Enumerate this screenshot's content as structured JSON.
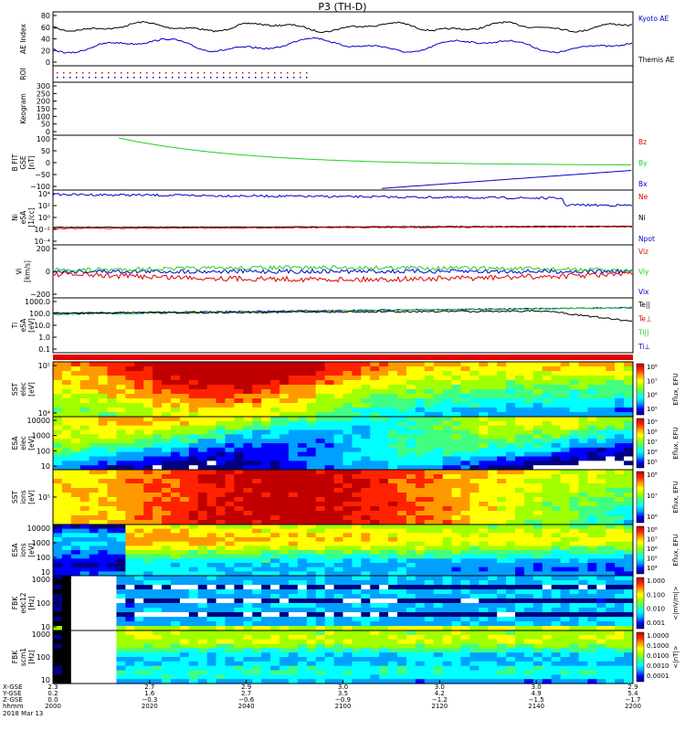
{
  "title": "P3 (TH-D)",
  "colors": {
    "red": "#e00000",
    "green": "#22cc22",
    "blue": "#0000cc",
    "black": "#000000"
  },
  "chart_data": {
    "type": "line",
    "panels": [
      {
        "id": "ae",
        "ylabel": [
          "AE Index"
        ],
        "yticks": [
          "80",
          "60",
          "40",
          "20",
          "0"
        ],
        "legend": [
          {
            "text": "Kyoto AE",
            "color": "#0000cc"
          },
          {
            "text": "Themis AE",
            "color": "#000000"
          }
        ]
      },
      {
        "id": "roi",
        "ylabel": [
          "ROI"
        ],
        "yticks": [],
        "legend": []
      },
      {
        "id": "keogram",
        "ylabel": [
          "Keogram"
        ],
        "yticks": [
          "300",
          "250",
          "200",
          "150",
          "100",
          "50",
          "0"
        ],
        "legend": []
      },
      {
        "id": "bfit",
        "ylabel": [
          "B FIT",
          "GSE",
          "[nT]"
        ],
        "yticks": [
          "100",
          "50",
          "0",
          "−50",
          "−100"
        ],
        "legend": [
          {
            "text": "Bz",
            "color": "#e00000"
          },
          {
            "text": "By",
            "color": "#22cc22"
          },
          {
            "text": "Bx",
            "color": "#0000cc"
          }
        ]
      },
      {
        "id": "ni",
        "ylabel": [
          "Ni",
          "eSA",
          "[1/cc]"
        ],
        "yticks": [
          "10⁴",
          "10²",
          "10⁰",
          "10⁻²",
          "10⁻⁴"
        ],
        "legend": [
          {
            "text": "Ne",
            "color": "#e00000"
          },
          {
            "text": "Ni",
            "color": "#000000"
          },
          {
            "text": "Npot",
            "color": "#0000cc"
          }
        ]
      },
      {
        "id": "vi",
        "ylabel": [
          "Vi",
          "[km/s]"
        ],
        "yticks": [
          "200",
          "0",
          "−200"
        ],
        "legend": [
          {
            "text": "Viz",
            "color": "#e00000"
          },
          {
            "text": "Viy",
            "color": "#22cc22"
          },
          {
            "text": "Vix",
            "color": "#0000cc"
          }
        ]
      },
      {
        "id": "ti",
        "ylabel": [
          "Ti",
          "eSA",
          "[eV]"
        ],
        "yticks": [
          "1000.0",
          "100.0",
          "10.0",
          "1.0",
          "0.1"
        ],
        "legend": [
          {
            "text": "Te||",
            "color": "#000000"
          },
          {
            "text": "Te⊥",
            "color": "#e00000"
          },
          {
            "text": "Ti||",
            "color": "#22cc22"
          },
          {
            "text": "Ti⊥",
            "color": "#0000cc"
          }
        ]
      }
    ],
    "spectrograms": [
      {
        "id": "sst-e",
        "ylabel": [
          "SST",
          "elec",
          "[eV]"
        ],
        "yticks": [
          "10⁵",
          "10⁴"
        ],
        "cbar": [
          "10⁸",
          "10⁷",
          "10⁶",
          "10⁵"
        ],
        "cbar_label": "Eflux, EFU"
      },
      {
        "id": "esa-e",
        "ylabel": [
          "ESA",
          "elec",
          "[eV]"
        ],
        "yticks": [
          "10000",
          "1000",
          "100",
          "10"
        ],
        "cbar": [
          "10⁹",
          "10⁸",
          "10⁷",
          "10⁶",
          "10⁵"
        ],
        "cbar_label": "Eflux, EFU"
      },
      {
        "id": "sst-i",
        "ylabel": [
          "SST",
          "ions",
          "[eV]"
        ],
        "yticks": [
          "10⁵"
        ],
        "cbar": [
          "10⁸",
          "10⁷",
          "10⁶"
        ],
        "cbar_label": "Eflux, EFU"
      },
      {
        "id": "esa-i",
        "ylabel": [
          "ESA",
          "ions",
          "[eV]"
        ],
        "yticks": [
          "10000",
          "1000",
          "100",
          "10"
        ],
        "cbar": [
          "10⁸",
          "10⁷",
          "10⁶",
          "10⁵",
          "10⁴"
        ],
        "cbar_label": "Eflux, EFU"
      },
      {
        "id": "fbk-e",
        "ylabel": [
          "FBK",
          "edc12",
          "[Hz]"
        ],
        "yticks": [
          "1000",
          "100",
          "10"
        ],
        "cbar": [
          "1.000",
          "0.100",
          "0.010",
          "0.001"
        ],
        "cbar_label": "<|mV/m|>"
      },
      {
        "id": "fbk-b",
        "ylabel": [
          "FBK",
          "scm1",
          "[Hz]"
        ],
        "yticks": [
          "1000",
          "100",
          "10"
        ],
        "cbar": [
          "1.0000",
          "0.1000",
          "0.0100",
          "0.0010",
          "0.0001"
        ],
        "cbar_label": "<|nT|>"
      }
    ],
    "x_rows_labels": [
      "X-GSE",
      "Y-GSE",
      "Z-GSE",
      "hhmm",
      "2018 Mar 13"
    ],
    "x_ticks": [
      {
        "x": "2000",
        "vals": [
          "2.3",
          "0.2",
          "0.0"
        ]
      },
      {
        "x": "2020",
        "vals": [
          "2.7",
          "1.6",
          "−0.3"
        ]
      },
      {
        "x": "2040",
        "vals": [
          "2.9",
          "2.7",
          "−0.6"
        ]
      },
      {
        "x": "2100",
        "vals": [
          "3.0",
          "3.5",
          "−0.9"
        ]
      },
      {
        "x": "2120",
        "vals": [
          "3.0",
          "4.2",
          "−1.2"
        ]
      },
      {
        "x": "2140",
        "vals": [
          "3.0",
          "4.9",
          "−1.5"
        ]
      },
      {
        "x": "2200",
        "vals": [
          "2.9",
          "5.4",
          "−1.7"
        ]
      }
    ]
  }
}
